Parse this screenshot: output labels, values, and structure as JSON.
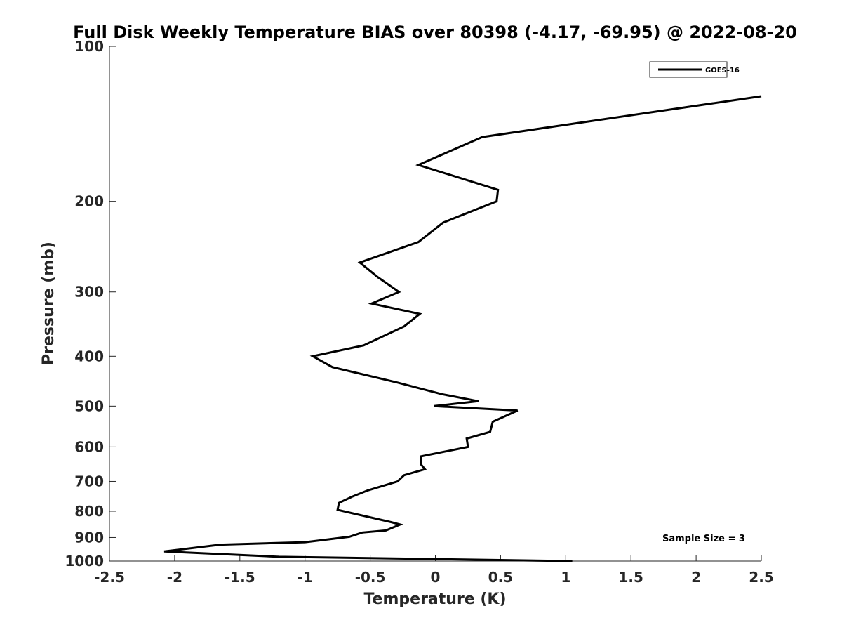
{
  "chart_data": {
    "type": "line",
    "title": "Full Disk Weekly Temperature BIAS over 80398 (-4.17, -69.95) @ 2022-08-20",
    "xlabel": "Temperature (K)",
    "ylabel": "Pressure (mb)",
    "xlim": [
      -2.5,
      2.5
    ],
    "ylim": [
      100,
      1000
    ],
    "yscale": "log",
    "yreversed": true,
    "x_ticks": [
      -2.5,
      -2,
      -1.5,
      -1,
      -0.5,
      0,
      0.5,
      1,
      1.5,
      2,
      2.5
    ],
    "x_tick_labels": [
      "-2.5",
      "-2",
      "-1.5",
      "-1",
      "-0.5",
      "0",
      "0.5",
      "1",
      "1.5",
      "2",
      "2.5"
    ],
    "y_ticks": [
      100,
      200,
      300,
      400,
      500,
      600,
      700,
      800,
      900,
      1000
    ],
    "y_tick_labels": [
      "100",
      "200",
      "300",
      "400",
      "500",
      "600",
      "700",
      "800",
      "900",
      "1000"
    ],
    "legend": {
      "location": "top-right",
      "entries": [
        "GOES-16"
      ]
    },
    "annotation": "Sample Size = 3",
    "series": [
      {
        "name": "GOES-16",
        "color": "#000000",
        "points": [
          [
            2.5,
            125
          ],
          [
            0.36,
            150
          ],
          [
            -0.13,
            170
          ],
          [
            0.48,
            190
          ],
          [
            0.47,
            200
          ],
          [
            0.06,
            220
          ],
          [
            -0.13,
            240
          ],
          [
            -0.58,
            263
          ],
          [
            -0.44,
            281
          ],
          [
            -0.28,
            300
          ],
          [
            -0.49,
            316
          ],
          [
            -0.12,
            331
          ],
          [
            -0.24,
            350
          ],
          [
            -0.55,
            381
          ],
          [
            -0.94,
            400
          ],
          [
            -0.79,
            420
          ],
          [
            -0.29,
            450
          ],
          [
            0.05,
            474
          ],
          [
            0.33,
            489
          ],
          [
            -0.01,
            500
          ],
          [
            0.63,
            510
          ],
          [
            0.44,
            536
          ],
          [
            0.42,
            561
          ],
          [
            0.24,
            578
          ],
          [
            0.25,
            600
          ],
          [
            -0.11,
            626
          ],
          [
            -0.11,
            649
          ],
          [
            -0.08,
            663
          ],
          [
            -0.24,
            681
          ],
          [
            -0.29,
            700
          ],
          [
            -0.52,
            729
          ],
          [
            -0.64,
            750
          ],
          [
            -0.74,
            771
          ],
          [
            -0.75,
            795
          ],
          [
            -0.34,
            840
          ],
          [
            -0.27,
            849
          ],
          [
            -0.38,
            872
          ],
          [
            -0.56,
            880
          ],
          [
            -0.66,
            897
          ],
          [
            -1.0,
            919
          ],
          [
            -1.65,
            929
          ],
          [
            -2.08,
            958
          ],
          [
            -1.2,
            981
          ],
          [
            0.0,
            991
          ],
          [
            1.05,
            1000
          ]
        ]
      }
    ]
  }
}
